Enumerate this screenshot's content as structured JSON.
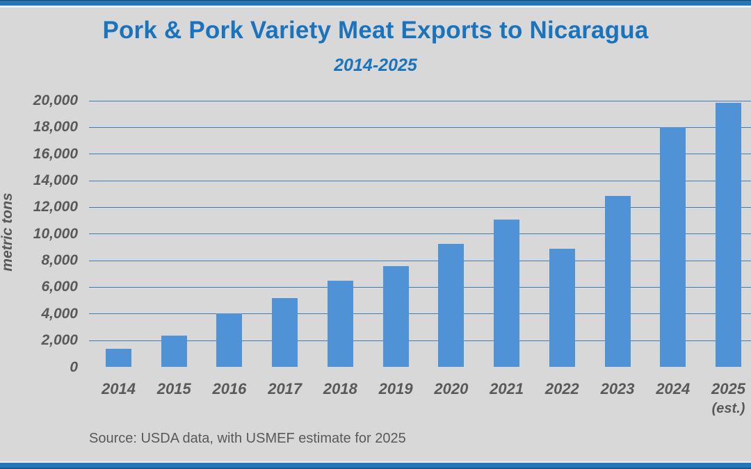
{
  "header": {
    "title": "Pork & Pork Variety Meat Exports to Nicaragua",
    "subtitle": "2014-2025"
  },
  "chart_data": {
    "type": "bar",
    "title": "Pork & Pork Variety Meat Exports to Nicaragua",
    "subtitle": "2014-2025",
    "categories": [
      "2014",
      "2015",
      "2016",
      "2017",
      "2018",
      "2019",
      "2020",
      "2021",
      "2022",
      "2023",
      "2024",
      "2025"
    ],
    "values": [
      1400,
      2350,
      4050,
      5200,
      6500,
      7600,
      9250,
      11100,
      8900,
      12850,
      18000,
      19850
    ],
    "last_category_note": "(est.)",
    "xlabel": "",
    "ylabel": "metric tons",
    "ylim": [
      0,
      20000
    ],
    "ytick_interval": 2000,
    "ytick_labels": [
      "0",
      "2,000",
      "4,000",
      "6,000",
      "8,000",
      "10,000",
      "12,000",
      "14,000",
      "16,000",
      "18,000",
      "20,000"
    ],
    "grid": "horizontal-only",
    "legend": "none",
    "colors": {
      "bar": "#4f93d6",
      "gridline": "#3f7cb9",
      "axis_text": "#595959",
      "title_text": "#1a73bd",
      "background": "#d8d8d8",
      "accent_bar": "#2377b8"
    }
  },
  "footer": {
    "source": "Source: USDA data, with USMEF estimate for 2025"
  }
}
